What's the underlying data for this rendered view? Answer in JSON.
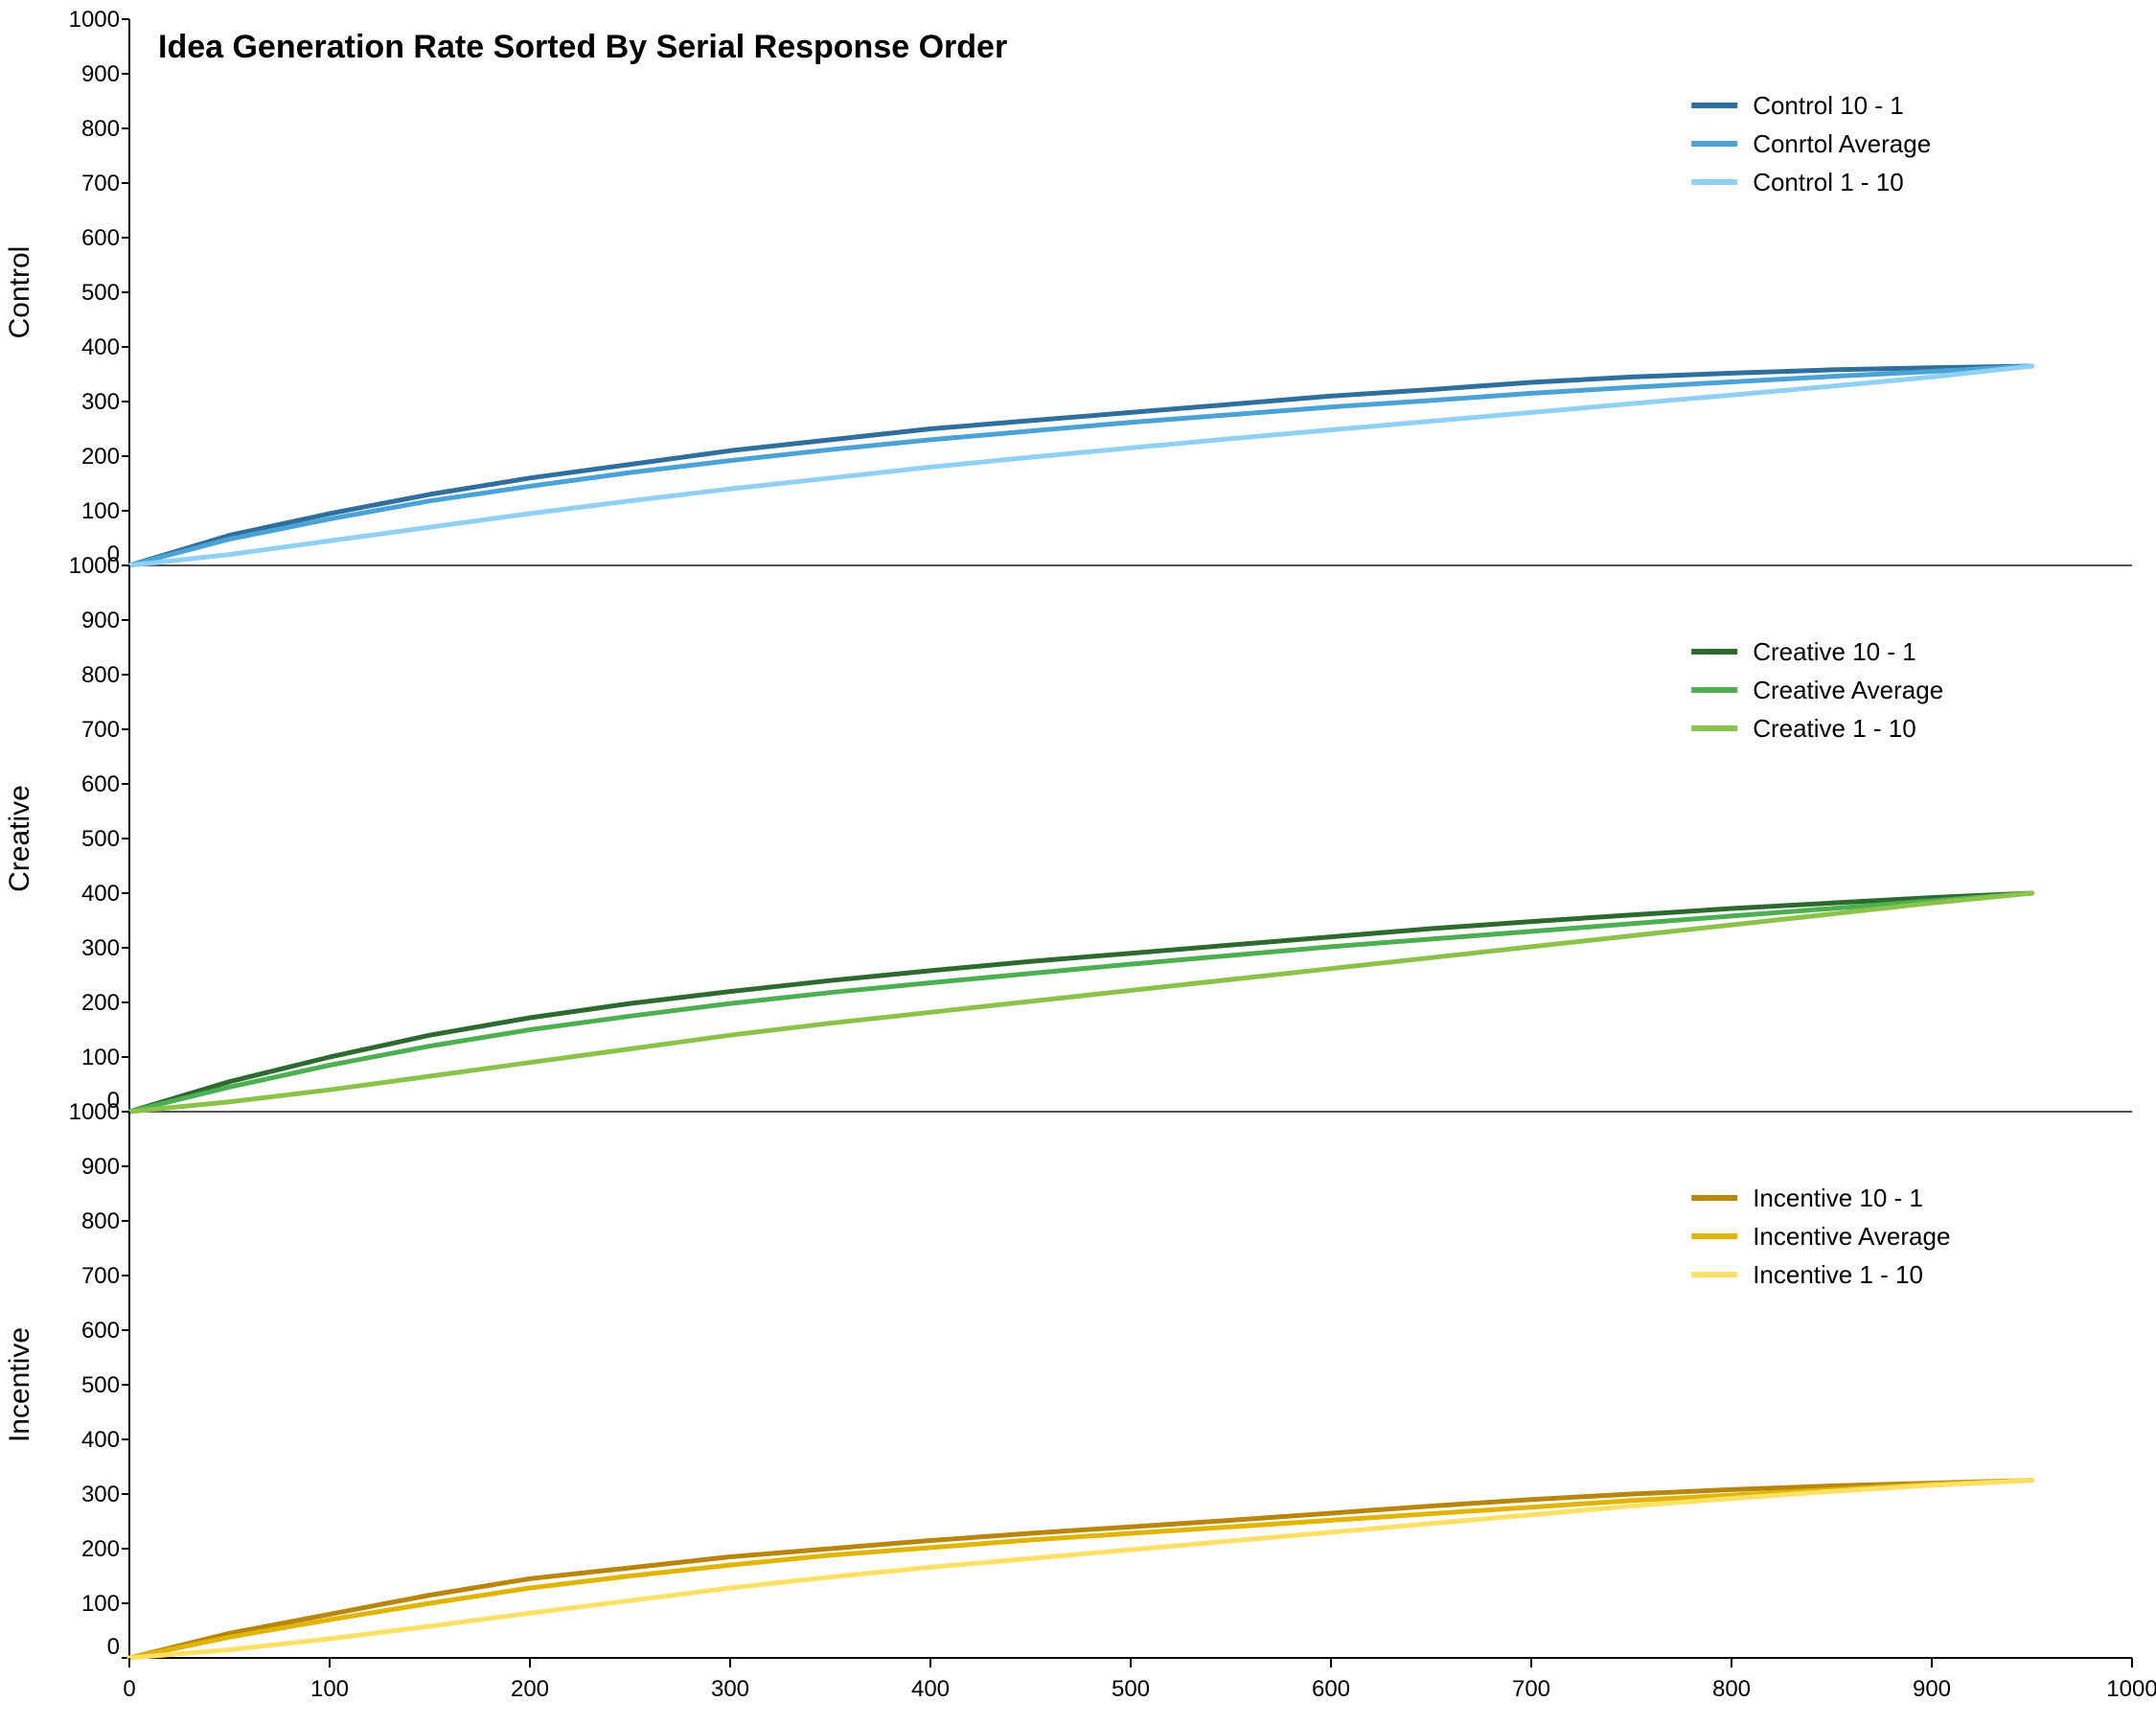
{
  "title": "Idea Generation Rate Sorted By Serial Response Order",
  "title_fontsize": 34,
  "background_color": "#ffffff",
  "axis_color": "#000000",
  "separator_color": "#555555",
  "tick_fontsize": 24,
  "ylabel_fontsize": 30,
  "legend_fontsize": 26,
  "legend_swatch_width": 48,
  "legend_line_width": 6,
  "series_line_width": 5,
  "x_axis": {
    "min": 0,
    "max": 1000,
    "tick_step": 100,
    "ticks": [
      0,
      100,
      200,
      300,
      400,
      500,
      600,
      700,
      800,
      900,
      1000
    ]
  },
  "y_axis": {
    "min": 0,
    "max": 1000,
    "tick_step": 100,
    "ticks": [
      0,
      100,
      200,
      300,
      400,
      500,
      600,
      700,
      800,
      900,
      1000
    ]
  },
  "x_samples": [
    0,
    50,
    100,
    150,
    200,
    250,
    300,
    350,
    400,
    450,
    500,
    550,
    600,
    650,
    700,
    750,
    800,
    850,
    900,
    950
  ],
  "panels": [
    {
      "label": "Control",
      "series": [
        {
          "name": "Control 10 - 1",
          "color": "#2e6f9e",
          "y": [
            0,
            55,
            95,
            130,
            160,
            185,
            210,
            230,
            250,
            265,
            280,
            295,
            310,
            322,
            335,
            345,
            352,
            358,
            362,
            365
          ]
        },
        {
          "name": "Conrtol Average",
          "color": "#4aa3d4",
          "y": [
            0,
            48,
            85,
            118,
            145,
            170,
            192,
            212,
            230,
            246,
            262,
            276,
            290,
            302,
            315,
            326,
            336,
            346,
            355,
            365
          ]
        },
        {
          "name": "Control 1 - 10",
          "color": "#8fd0f4",
          "y": [
            0,
            20,
            45,
            70,
            95,
            118,
            140,
            160,
            180,
            198,
            215,
            232,
            248,
            264,
            280,
            296,
            312,
            328,
            345,
            365
          ]
        }
      ]
    },
    {
      "label": "Creative",
      "series": [
        {
          "name": "Creative 10 - 1",
          "color": "#2d6a2f",
          "y": [
            0,
            55,
            100,
            140,
            172,
            198,
            220,
            240,
            258,
            275,
            290,
            305,
            320,
            335,
            348,
            360,
            372,
            382,
            392,
            400
          ]
        },
        {
          "name": "Creative Average",
          "color": "#4caf50",
          "y": [
            0,
            45,
            85,
            120,
            150,
            175,
            198,
            218,
            236,
            253,
            270,
            286,
            302,
            316,
            330,
            344,
            358,
            372,
            386,
            400
          ]
        },
        {
          "name": "Creative 1 - 10",
          "color": "#8bc34a",
          "y": [
            0,
            18,
            40,
            65,
            90,
            115,
            140,
            162,
            182,
            202,
            222,
            242,
            262,
            282,
            302,
            322,
            342,
            362,
            382,
            400
          ]
        }
      ]
    },
    {
      "label": "Incentive",
      "series": [
        {
          "name": "Incentive 10 - 1",
          "color": "#b8860b",
          "y": [
            0,
            45,
            80,
            115,
            145,
            165,
            185,
            200,
            215,
            228,
            240,
            252,
            265,
            278,
            290,
            300,
            308,
            315,
            320,
            325
          ]
        },
        {
          "name": "Incentive Average",
          "color": "#e0b400",
          "y": [
            0,
            38,
            70,
            100,
            128,
            150,
            170,
            188,
            202,
            216,
            228,
            240,
            252,
            264,
            276,
            288,
            298,
            308,
            318,
            325
          ]
        },
        {
          "name": "Incentive 1 - 10",
          "color": "#ffe066",
          "y": [
            0,
            15,
            35,
            58,
            82,
            105,
            128,
            148,
            166,
            182,
            198,
            214,
            230,
            246,
            262,
            278,
            292,
            305,
            316,
            325
          ]
        }
      ]
    }
  ]
}
